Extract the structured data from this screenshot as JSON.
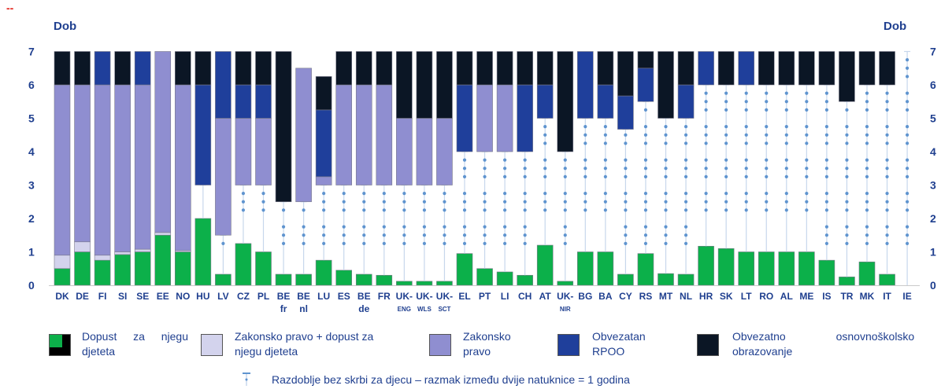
{
  "corner_mark": "--",
  "colors": {
    "ecec_leave": "#0cb04a",
    "legal_plus_leave": "#d3d3ed",
    "legal_entitlement": "#8f8ed0",
    "compulsory_ecec": "#1f3f9b",
    "compulsory_school": "#0b1625",
    "gap": "#c7d7ec",
    "dot": "#5f94cf",
    "text": "#1f3f8f"
  },
  "chart_data": {
    "type": "bar",
    "stacked": true,
    "y_label_left": "Dob",
    "y_label_right": "Dob",
    "ylim": [
      0,
      7
    ],
    "yticks": [
      0,
      1,
      2,
      3,
      4,
      5,
      6,
      7
    ],
    "categories": [
      {
        "label": "DK",
        "sub": ""
      },
      {
        "label": "DE",
        "sub": ""
      },
      {
        "label": "FI",
        "sub": ""
      },
      {
        "label": "SI",
        "sub": ""
      },
      {
        "label": "SE",
        "sub": ""
      },
      {
        "label": "EE",
        "sub": ""
      },
      {
        "label": "NO",
        "sub": ""
      },
      {
        "label": "HU",
        "sub": ""
      },
      {
        "label": "LV",
        "sub": ""
      },
      {
        "label": "CZ",
        "sub": ""
      },
      {
        "label": "PL",
        "sub": ""
      },
      {
        "label": "BE",
        "sub": "fr"
      },
      {
        "label": "BE",
        "sub": "nl"
      },
      {
        "label": "LU",
        "sub": ""
      },
      {
        "label": "ES",
        "sub": ""
      },
      {
        "label": "BE",
        "sub": "de"
      },
      {
        "label": "FR",
        "sub": ""
      },
      {
        "label": "UK-",
        "sub": "ENG"
      },
      {
        "label": "UK-",
        "sub": "WLS"
      },
      {
        "label": "UK-",
        "sub": "SCT"
      },
      {
        "label": "EL",
        "sub": ""
      },
      {
        "label": "PT",
        "sub": ""
      },
      {
        "label": "LI",
        "sub": ""
      },
      {
        "label": "CH",
        "sub": ""
      },
      {
        "label": "AT",
        "sub": ""
      },
      {
        "label": "UK-",
        "sub": "NIR"
      },
      {
        "label": "BG",
        "sub": ""
      },
      {
        "label": "BA",
        "sub": ""
      },
      {
        "label": "CY",
        "sub": ""
      },
      {
        "label": "RS",
        "sub": ""
      },
      {
        "label": "MT",
        "sub": ""
      },
      {
        "label": "NL",
        "sub": ""
      },
      {
        "label": "HR",
        "sub": ""
      },
      {
        "label": "SK",
        "sub": ""
      },
      {
        "label": "LT",
        "sub": ""
      },
      {
        "label": "RO",
        "sub": ""
      },
      {
        "label": "AL",
        "sub": ""
      },
      {
        "label": "ME",
        "sub": ""
      },
      {
        "label": "IS",
        "sub": ""
      },
      {
        "label": "TR",
        "sub": ""
      },
      {
        "label": "MK",
        "sub": ""
      },
      {
        "label": "IT",
        "sub": ""
      },
      {
        "label": "IE",
        "sub": ""
      }
    ],
    "series": [
      {
        "key": "ecec_leave",
        "name": "Dopust za njegu djeteta",
        "values": [
          0.5,
          1.0,
          0.75,
          0.92,
          1.0,
          1.5,
          1.0,
          2.0,
          0.33,
          1.25,
          1.0,
          0.33,
          0.33,
          0.75,
          0.45,
          0.33,
          0.3,
          0.12,
          0.12,
          0.12,
          0.95,
          0.5,
          0.4,
          0.3,
          1.2,
          0.12,
          1.0,
          1.0,
          0.33,
          0.95,
          0.35,
          0.33,
          1.17,
          1.1,
          1.0,
          1.0,
          1.0,
          1.0,
          0.75,
          0.25,
          0.7,
          0.33,
          0.0
        ]
      },
      {
        "key": "legal_plus_leave",
        "name": "Zakonsko pravo + dopust za njegu djeteta",
        "values": [
          0.4,
          0.3,
          0.15,
          0.08,
          0.08,
          0.08,
          0.04,
          0,
          0,
          0,
          0,
          0,
          0,
          0,
          0,
          0,
          0,
          0,
          0,
          0,
          0,
          0,
          0,
          0,
          0,
          0,
          0,
          0,
          0,
          0,
          0,
          0,
          0,
          0,
          0,
          0,
          0,
          0,
          0,
          0,
          0,
          0,
          0
        ]
      },
      {
        "key": "gap",
        "name": "Razdoblje bez skrbi za djecu – razmak između dvije natuknice = 1 godina",
        "values": [
          0,
          0,
          0,
          0,
          0,
          0,
          0,
          1.0,
          1.17,
          1.75,
          2.0,
          2.17,
          2.17,
          2.25,
          2.55,
          2.67,
          2.7,
          2.88,
          2.88,
          2.88,
          3.05,
          3.5,
          3.6,
          3.7,
          3.8,
          3.88,
          4.0,
          4.0,
          4.34,
          4.55,
          4.65,
          4.67,
          4.83,
          4.9,
          5.0,
          5.0,
          5.0,
          5.0,
          5.25,
          5.25,
          5.3,
          5.67,
          7.0
        ]
      },
      {
        "key": "legal_entitlement",
        "name": "Zakonsko pravo",
        "values": [
          5.1,
          4.7,
          5.1,
          5.0,
          4.92,
          5.42,
          4.96,
          0,
          3.5,
          2.0,
          2.0,
          0,
          4.0,
          0.25,
          3.0,
          3.0,
          3.0,
          2.0,
          2.0,
          2.0,
          0,
          2.0,
          2.0,
          0,
          0,
          0,
          0,
          0,
          0,
          0,
          0,
          0,
          0,
          0,
          0,
          0,
          0,
          0,
          0,
          0,
          0,
          0,
          0
        ]
      },
      {
        "key": "compulsory_ecec",
        "name": "Obvezatan RPOO",
        "values": [
          0,
          0,
          1.0,
          0,
          1.0,
          0,
          0,
          3.0,
          2.0,
          1.0,
          1.0,
          0,
          0,
          2.0,
          0,
          0,
          0,
          0,
          0,
          0,
          2.0,
          0,
          0,
          2.0,
          1.0,
          0,
          2.0,
          1.0,
          1.0,
          1.0,
          0,
          1.0,
          1.0,
          0,
          1.0,
          0,
          0,
          0,
          0,
          0,
          0,
          0,
          0
        ]
      },
      {
        "key": "compulsory_school",
        "name": "Obvezatno osnovnoškolsko obrazovanje",
        "values": [
          1.0,
          1.0,
          0,
          1.0,
          0,
          0,
          1.0,
          1.0,
          0,
          1.0,
          1.0,
          4.5,
          0,
          1.0,
          1.0,
          1.0,
          1.0,
          2.0,
          2.0,
          2.0,
          1.0,
          1.0,
          1.0,
          1.0,
          1.0,
          3.0,
          0,
          1.0,
          1.33,
          0.5,
          2.0,
          1.0,
          0,
          1.0,
          0,
          1.0,
          1.0,
          1.0,
          1.0,
          1.5,
          1.0,
          1.0,
          0
        ]
      }
    ]
  },
  "legend": {
    "items": [
      {
        "key": "ecec_leave",
        "text_lines": [
          "Dopust za njegu",
          "djeteta"
        ]
      },
      {
        "key": "legal_plus_leave",
        "text_lines": [
          "Zakonsko pravo + dopust za",
          "njegu djeteta"
        ]
      },
      {
        "key": "legal_entitlement",
        "text_lines": [
          "Zakonsko",
          "pravo"
        ]
      },
      {
        "key": "compulsory_ecec",
        "text_lines": [
          "Obvezatan",
          "RPOO"
        ]
      },
      {
        "key": "compulsory_school",
        "text_lines": [
          "Obvezatno osnovnoškolsko",
          "obrazovanje"
        ]
      }
    ],
    "gap_note": "Razdoblje bez skrbi za djecu – razmak između dvije natuknice = 1 godina"
  }
}
